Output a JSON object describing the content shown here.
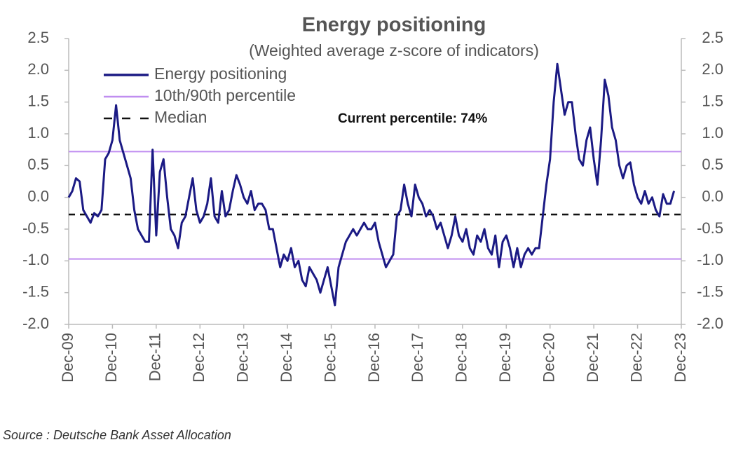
{
  "chart_data": {
    "type": "line",
    "title": "Energy positioning",
    "subtitle": "(Weighted average z-score of indicators)",
    "annotation": "Current percentile: 74%",
    "source": "Source : Deutsche Bank Asset Allocation",
    "categories": [
      "Dec-09",
      null,
      null,
      null,
      null,
      null,
      null,
      null,
      null,
      null,
      null,
      null,
      "Dec-10",
      null,
      null,
      null,
      null,
      null,
      null,
      null,
      null,
      null,
      null,
      null,
      "Dec-11",
      null,
      null,
      null,
      null,
      null,
      null,
      null,
      null,
      null,
      null,
      null,
      "Dec-12",
      null,
      null,
      null,
      null,
      null,
      null,
      null,
      null,
      null,
      null,
      null,
      "Dec-13",
      null,
      null,
      null,
      null,
      null,
      null,
      null,
      null,
      null,
      null,
      null,
      "Dec-14",
      null,
      null,
      null,
      null,
      null,
      null,
      null,
      null,
      null,
      null,
      null,
      "Dec-15",
      null,
      null,
      null,
      null,
      null,
      null,
      null,
      null,
      null,
      null,
      null,
      "Dec-16",
      null,
      null,
      null,
      null,
      null,
      null,
      null,
      null,
      null,
      null,
      null,
      "Dec-17",
      null,
      null,
      null,
      null,
      null,
      null,
      null,
      null,
      null,
      null,
      null,
      "Dec-18",
      null,
      null,
      null,
      null,
      null,
      null,
      null,
      null,
      null,
      null,
      null,
      "Dec-19",
      null,
      null,
      null,
      null,
      null,
      null,
      null,
      null,
      null,
      null,
      null,
      "Dec-20",
      null,
      null,
      null,
      null,
      null,
      null,
      null,
      null,
      null,
      null,
      null,
      "Dec-21",
      null,
      null,
      null,
      null,
      null,
      null,
      null,
      null,
      null,
      null,
      null,
      "Dec-22",
      null,
      null,
      null,
      null,
      null,
      null,
      null,
      null,
      null,
      null,
      null,
      "Dec-23"
    ],
    "series": [
      {
        "name": "Energy positioning",
        "color": "#1b1a84",
        "values": [
          0.0,
          0.1,
          0.3,
          0.25,
          -0.2,
          -0.3,
          -0.4,
          -0.25,
          -0.3,
          -0.2,
          0.6,
          0.7,
          0.9,
          1.45,
          0.9,
          0.7,
          0.5,
          0.3,
          -0.2,
          -0.5,
          -0.6,
          -0.7,
          -0.7,
          0.75,
          -0.6,
          0.4,
          0.6,
          0.0,
          -0.5,
          -0.6,
          -0.8,
          -0.4,
          -0.3,
          0.0,
          0.3,
          -0.2,
          -0.4,
          -0.3,
          -0.1,
          0.3,
          -0.3,
          -0.4,
          0.1,
          -0.3,
          -0.2,
          0.1,
          0.35,
          0.2,
          0.0,
          -0.1,
          0.1,
          -0.2,
          -0.1,
          -0.1,
          -0.2,
          -0.5,
          -0.5,
          -0.8,
          -1.1,
          -0.9,
          -1.0,
          -0.8,
          -1.1,
          -1.0,
          -1.3,
          -1.4,
          -1.1,
          -1.2,
          -1.3,
          -1.5,
          -1.3,
          -1.1,
          -1.4,
          -1.7,
          -1.1,
          -0.9,
          -0.7,
          -0.6,
          -0.5,
          -0.6,
          -0.5,
          -0.4,
          -0.5,
          -0.5,
          -0.4,
          -0.7,
          -0.9,
          -1.1,
          -1.0,
          -0.9,
          -0.3,
          -0.2,
          0.2,
          -0.1,
          -0.3,
          0.2,
          0.0,
          -0.1,
          -0.3,
          -0.2,
          -0.3,
          -0.5,
          -0.4,
          -0.6,
          -0.8,
          -0.6,
          -0.3,
          -0.6,
          -0.7,
          -0.5,
          -0.8,
          -0.9,
          -0.6,
          -0.7,
          -0.5,
          -0.8,
          -0.9,
          -0.6,
          -1.1,
          -0.7,
          -0.6,
          -0.8,
          -1.1,
          -0.8,
          -1.1,
          -0.9,
          -0.8,
          -0.9,
          -0.8,
          -0.8,
          -0.3,
          0.2,
          0.6,
          1.5,
          2.1,
          1.7,
          1.3,
          1.5,
          1.5,
          1.0,
          0.6,
          0.5,
          0.9,
          1.1,
          0.6,
          0.2,
          0.9,
          1.85,
          1.6,
          1.1,
          0.9,
          0.5,
          0.3,
          0.5,
          0.55,
          0.2,
          0.0,
          -0.1,
          0.1,
          -0.1,
          0.0,
          -0.2,
          -0.3,
          0.05,
          -0.1,
          -0.1,
          0.1,
          null,
          null
        ]
      }
    ],
    "hlines": [
      {
        "name": "10th/90th percentile",
        "color": "#c08ef0",
        "values": [
          0.72,
          -0.97
        ]
      },
      {
        "name": "Median",
        "color": "#111111",
        "dashed": true,
        "values": [
          -0.27
        ]
      }
    ],
    "ylim": [
      -2.0,
      2.5
    ],
    "yticks": [
      {
        "value": -2,
        "label": "-2.0"
      },
      -1.5,
      {
        "value": -1,
        "label": "-1.0"
      },
      -0.5,
      {
        "value": 0,
        "label": "0.0"
      },
      0.5,
      {
        "value": 1,
        "label": "1.0"
      },
      1.5,
      {
        "value": 2,
        "label": "2.0"
      },
      2.5
    ],
    "y2lim": [
      -2.0,
      2.5
    ],
    "y2ticks": [
      {
        "value": -2,
        "label": "-2.0"
      },
      -1.5,
      {
        "value": -1,
        "label": "-1.0"
      },
      -0.5,
      {
        "value": 0,
        "label": "0.0"
      },
      0.5,
      {
        "value": 1,
        "label": "1.0"
      },
      1.5,
      {
        "value": 2,
        "label": "2.0"
      },
      2.5
    ],
    "legend": "top-left"
  }
}
